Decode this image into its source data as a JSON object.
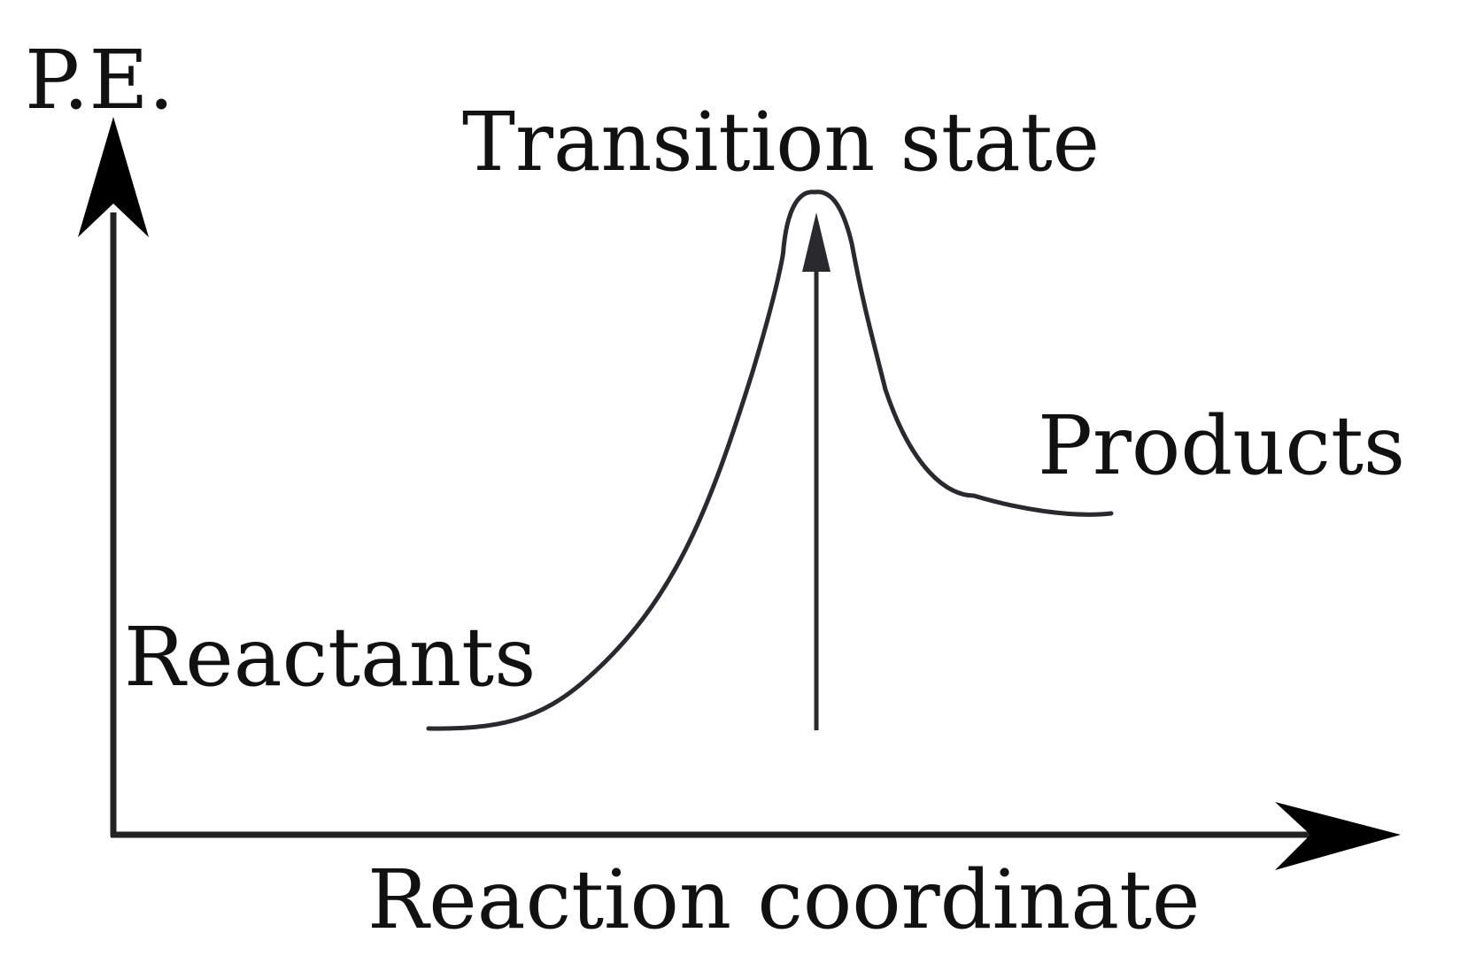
{
  "diagram": {
    "y_axis_label": "P.E.",
    "x_axis_label": "Reaction coordinate",
    "peak_label": "Transition state",
    "start_label": "Reactants",
    "end_label": "Products"
  },
  "colors": {
    "axis": "#222222",
    "curve": "#2a2a2e",
    "text": "#111111"
  }
}
